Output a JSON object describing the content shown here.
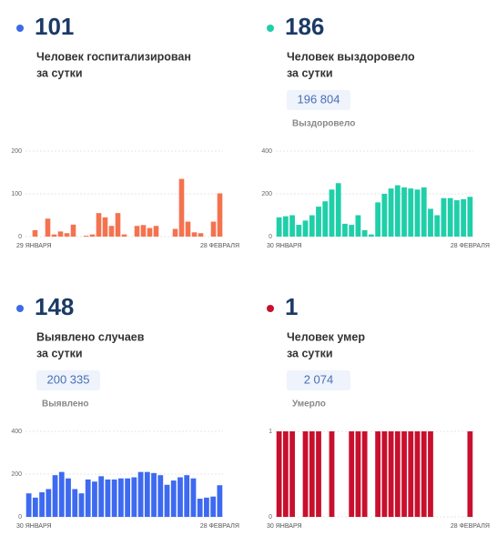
{
  "chart_data": [
    {
      "type": "bar",
      "value": 101,
      "dot_color": "#3d6ae8",
      "lines": [
        "Человек госпитализирован",
        "за сутки"
      ],
      "color": "#f4734f",
      "ylim": [
        0,
        200
      ],
      "yticks": [
        0,
        100,
        200
      ],
      "categories": [
        "29 ЯНВАРЯ",
        null,
        null,
        null,
        null,
        null,
        null,
        null,
        null,
        null,
        null,
        null,
        null,
        null,
        null,
        null,
        null,
        null,
        null,
        null,
        null,
        null,
        null,
        null,
        null,
        null,
        null,
        null,
        null,
        null,
        "28 ФЕВРАЛЯ"
      ],
      "values": [
        0,
        15,
        0,
        42,
        5,
        12,
        8,
        28,
        0,
        2,
        5,
        55,
        45,
        25,
        55,
        5,
        0,
        25,
        27,
        20,
        25,
        0,
        0,
        18,
        135,
        35,
        10,
        8,
        0,
        35,
        101
      ]
    },
    {
      "type": "bar",
      "value": 186,
      "dot_color": "#1fcfa9",
      "lines": [
        "Человек выздоровело",
        "за сутки"
      ],
      "total": "196 804",
      "total_label": "Выздоровело",
      "color": "#1fcfa9",
      "ylim": [
        0,
        400
      ],
      "yticks": [
        0,
        200,
        400
      ],
      "categories": [
        "30 ЯНВАРЯ",
        null,
        null,
        null,
        null,
        null,
        null,
        null,
        null,
        null,
        null,
        null,
        null,
        null,
        null,
        null,
        null,
        null,
        null,
        null,
        null,
        null,
        null,
        null,
        null,
        null,
        null,
        null,
        null,
        "28 ФЕВРАЛЯ"
      ],
      "values": [
        90,
        95,
        100,
        55,
        75,
        100,
        140,
        165,
        220,
        250,
        60,
        55,
        100,
        30,
        10,
        160,
        200,
        225,
        240,
        230,
        225,
        220,
        230,
        130,
        100,
        180,
        180,
        170,
        175,
        186
      ]
    },
    {
      "type": "bar",
      "value": 148,
      "dot_color": "#3d6ae8",
      "lines": [
        "Выявлено случаев",
        "за сутки"
      ],
      "total": "200 335",
      "total_label": "Выявлено",
      "color": "#3d6af0",
      "ylim": [
        0,
        400
      ],
      "yticks": [
        0,
        200,
        400
      ],
      "categories": [
        "30 ЯНВАРЯ",
        null,
        null,
        null,
        null,
        null,
        null,
        null,
        null,
        null,
        null,
        null,
        null,
        null,
        null,
        null,
        null,
        null,
        null,
        null,
        null,
        null,
        null,
        null,
        null,
        null,
        null,
        null,
        null,
        "28 ФЕВРАЛЯ"
      ],
      "values": [
        110,
        90,
        115,
        130,
        195,
        210,
        180,
        130,
        110,
        175,
        165,
        190,
        175,
        175,
        180,
        180,
        185,
        210,
        210,
        205,
        195,
        150,
        170,
        185,
        195,
        180,
        85,
        90,
        95,
        148
      ]
    },
    {
      "type": "bar",
      "value": 1,
      "dot_color": "#c8102e",
      "lines": [
        "Человек умер",
        "за сутки"
      ],
      "total": "2 074",
      "total_label": "Умерло",
      "color": "#c8102e",
      "ylim": [
        0,
        1
      ],
      "yticks": [
        0,
        1
      ],
      "categories": [
        "30 ЯНВАРЯ",
        null,
        null,
        null,
        null,
        null,
        null,
        null,
        null,
        null,
        null,
        null,
        null,
        null,
        null,
        null,
        null,
        null,
        null,
        null,
        null,
        null,
        null,
        null,
        null,
        null,
        null,
        null,
        null,
        "28 ФЕВРАЛЯ"
      ],
      "values": [
        1,
        1,
        1,
        0,
        1,
        1,
        1,
        0,
        1,
        0,
        0,
        1,
        1,
        1,
        0,
        1,
        1,
        1,
        1,
        1,
        1,
        1,
        1,
        1,
        0,
        0,
        0,
        0,
        0,
        1
      ]
    }
  ]
}
